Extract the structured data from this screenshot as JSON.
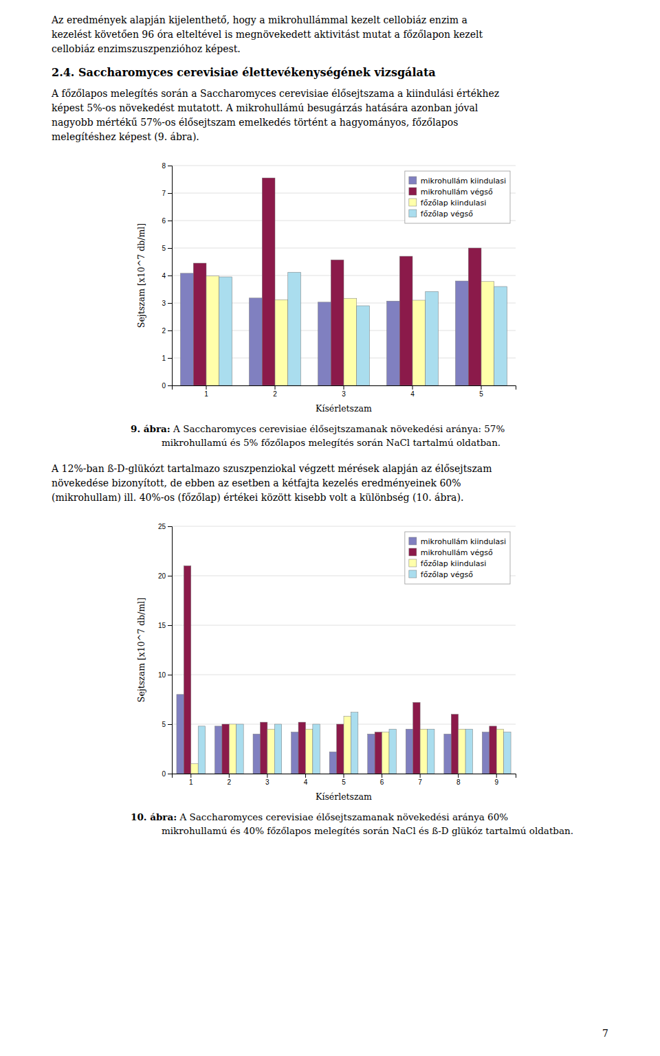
{
  "text1": [
    "Az eredmények alapján kijelenthető, hogy a mikrohullámmal kezelt cellobiáz enzim a",
    "kezelést követően 96 óra elteltével is megnövekedett aktivitást mutat a főzőlapon kezelt",
    "cellobiáz enzimszuszpenzióhoz képest."
  ],
  "heading": "2.4. Saccharomyces cerevisiae élettevékenységének vizsgálata",
  "text2": [
    "A főzőlapos melegítés során a Saccharomyces cerevisiae élősejtszama a kiindulási értékhez",
    "képest 5%-os növekedést mutatott. A mikrohullámú besugárzás hatására azonban jóval",
    "nagyobb mértékű 57%-os élősejtszam emelkedés történt a hagyományos, főzőlapos",
    "melegítéshez képest (9. ábra)."
  ],
  "text3": [
    "A 12%-ban ß-D-glükózt tartalmazo szuszpenziokal végzett mérések alapján az élősejtszam",
    "növekedése bizonyított, de ebben az esetben a kétfajta kezelés eredményeinek 60%",
    "(mikrohullam) ill. 40%-os (főzőlap) értékei között kisebb volt a különbség (10. ábra)."
  ],
  "captions": [
    {
      "label": "9. ábra:",
      "lines": [
        " A Saccharomyces cerevisiae élősejtszamanak növekedési aránya: 57%",
        "mikrohullamú és 5% főzőlapos melegítés során NaCl tartalmú oldatban."
      ]
    },
    {
      "label": "10. ábra:",
      "lines": [
        " A Saccharomyces cerevisiae élősejtszamanak növekedési aránya 60%",
        "mikrohullamú és 40%  főzőlapos melegítés során NaCl és ß-D glükóz tartalmú oldatban."
      ]
    }
  ],
  "page_number": "7",
  "chart_data": [
    {
      "type": "bar",
      "xlabel": "Kísérletszam",
      "ylabel": "Sejtszam [x10^7 db/ml]",
      "categories": [
        "1",
        "2",
        "3",
        "4",
        "5"
      ],
      "ylim": [
        0,
        8
      ],
      "yticks": [
        0,
        1,
        2,
        3,
        4,
        5,
        6,
        7,
        8
      ],
      "grid": true,
      "legend": "upper right",
      "series": [
        {
          "name": "mikrohullám kiindulasi",
          "color": "#8080c0",
          "values": [
            4.08,
            3.18,
            3.03,
            3.07,
            3.8
          ]
        },
        {
          "name": "mikrohullám végső",
          "color": "#8b1a4a",
          "values": [
            4.45,
            7.55,
            4.57,
            4.7,
            5.0
          ]
        },
        {
          "name": "főzőlap kiindulasi",
          "color": "#ffffaa",
          "values": [
            3.98,
            3.12,
            3.17,
            3.1,
            3.78
          ]
        },
        {
          "name": "főzőlap végső",
          "color": "#aaddee",
          "values": [
            3.95,
            4.12,
            2.9,
            3.42,
            3.6
          ]
        }
      ]
    },
    {
      "type": "bar",
      "xlabel": "Kísérletszam",
      "ylabel": "Sejtszam [x10^7 db/ml]",
      "categories": [
        "1",
        "2",
        "3",
        "4",
        "5",
        "6",
        "7",
        "8",
        "9"
      ],
      "ylim": [
        0,
        25
      ],
      "yticks": [
        0,
        5,
        10,
        15,
        20,
        25
      ],
      "grid": true,
      "legend": "upper right",
      "series": [
        {
          "name": "mikrohullám kiindulasi",
          "color": "#8080c0",
          "values": [
            8.0,
            4.8,
            4.0,
            4.2,
            2.2,
            4.0,
            4.5,
            4.0,
            4.2
          ]
        },
        {
          "name": "mikrohullám végső",
          "color": "#8b1a4a",
          "values": [
            21.0,
            5.0,
            5.2,
            5.2,
            5.0,
            4.2,
            7.2,
            6.0,
            4.8
          ]
        },
        {
          "name": "főzőlap kiindulasi",
          "color": "#ffffaa",
          "values": [
            1.0,
            5.0,
            4.5,
            4.5,
            5.8,
            4.2,
            4.5,
            4.5,
            4.5
          ]
        },
        {
          "name": "főzőlap végső",
          "color": "#aaddee",
          "values": [
            4.8,
            5.0,
            5.0,
            5.0,
            6.2,
            4.5,
            4.5,
            4.5,
            4.2
          ]
        }
      ]
    }
  ]
}
